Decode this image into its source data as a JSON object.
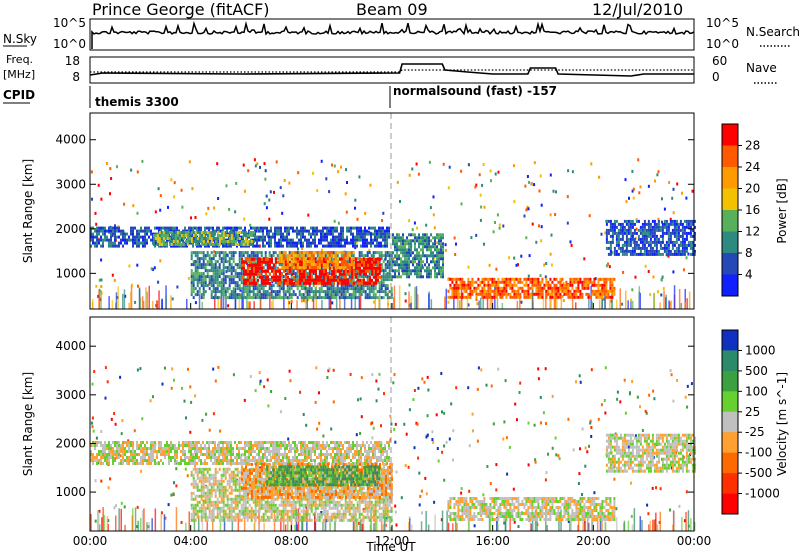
{
  "header": {
    "station": "Prince George (fitACF)",
    "beam": "Beam 09",
    "date": "12/Jul/2010"
  },
  "panels": {
    "nsky_label": "N.Sky",
    "nsky_ticks": [
      "10^5",
      "10^0"
    ],
    "nsearch_label": "N.Search",
    "freq_label_1": "Freq.",
    "freq_label_2": "[MHz]",
    "freq_ticks": [
      "18",
      "8"
    ],
    "nave_ticks": [
      "60",
      "0"
    ],
    "nave_label": "Nave",
    "cpid_label": "CPID",
    "cpid_segments": [
      "themis 3300",
      "normalsound (fast) -157"
    ]
  },
  "power_colorbar": {
    "label": "Power [dB]",
    "ticks": [
      "28",
      "24",
      "20",
      "16",
      "12",
      "8",
      "4"
    ],
    "colors": [
      "#ff0000",
      "#ff5a00",
      "#ff9a00",
      "#f2c200",
      "#58b05a",
      "#2c8a80",
      "#2448b8",
      "#1020ff"
    ]
  },
  "velocity_colorbar": {
    "label": "Velocity [m s^-1]",
    "ticks": [
      "1000",
      "500",
      "100",
      "25",
      "-25",
      "-100",
      "-500",
      "-1000"
    ],
    "colors": [
      "#1030c0",
      "#2a8a6a",
      "#3aa040",
      "#66d030",
      "#c0c0c0",
      "#ffa030",
      "#ff6a00",
      "#ff3000",
      "#ff0000"
    ]
  },
  "chart_data": [
    {
      "type": "heatmap",
      "name": "power",
      "ylabel": "Slant Range [km]",
      "yticks": [
        1000,
        2000,
        3000,
        4000
      ],
      "ylim": [
        200,
        4600
      ],
      "xlim": [
        0,
        24
      ],
      "xticks": [
        "00:00",
        "04:00",
        "08:00",
        "12:00",
        "16:00",
        "20:00",
        "00:00"
      ],
      "regions": [
        {
          "t": [
            0.0,
            11.9
          ],
          "r": [
            1600,
            2050
          ],
          "level": 1
        },
        {
          "t": [
            2.5,
            6.5
          ],
          "r": [
            1650,
            1950
          ],
          "level": 3
        },
        {
          "t": [
            4.0,
            12.0
          ],
          "r": [
            450,
            1500
          ],
          "level": 2
        },
        {
          "t": [
            6.0,
            11.5
          ],
          "r": [
            750,
            1350
          ],
          "level": 7
        },
        {
          "t": [
            7.5,
            10.5
          ],
          "r": [
            1100,
            1500
          ],
          "level": 5
        },
        {
          "t": [
            12.0,
            14.0
          ],
          "r": [
            900,
            1900
          ],
          "level": 2
        },
        {
          "t": [
            14.2,
            20.8
          ],
          "r": [
            450,
            900
          ],
          "level": 6
        },
        {
          "t": [
            20.5,
            24.0
          ],
          "r": [
            1400,
            2200
          ],
          "level": 1
        }
      ]
    },
    {
      "type": "heatmap",
      "name": "velocity",
      "ylabel": "Slant Range [km]",
      "yticks": [
        1000,
        2000,
        3000,
        4000
      ],
      "ylim": [
        200,
        4600
      ],
      "xlim": [
        0,
        24
      ],
      "xlabel": "Time UT",
      "xticks": [
        "00:00",
        "04:00",
        "08:00",
        "12:00",
        "16:00",
        "20:00",
        "00:00"
      ],
      "regions": [
        {
          "t": [
            0.0,
            11.9
          ],
          "r": [
            1600,
            2050
          ],
          "level": 4
        },
        {
          "t": [
            4.0,
            12.0
          ],
          "r": [
            450,
            1500
          ],
          "level": 4
        },
        {
          "t": [
            6.0,
            12.0
          ],
          "r": [
            900,
            1600
          ],
          "level": 3
        },
        {
          "t": [
            7.0,
            11.5
          ],
          "r": [
            1150,
            1550
          ],
          "level": 6
        },
        {
          "t": [
            14.2,
            20.8
          ],
          "r": [
            450,
            900
          ],
          "level": 4
        },
        {
          "t": [
            20.5,
            24.0
          ],
          "r": [
            1400,
            2200
          ],
          "level": 4
        }
      ]
    }
  ]
}
